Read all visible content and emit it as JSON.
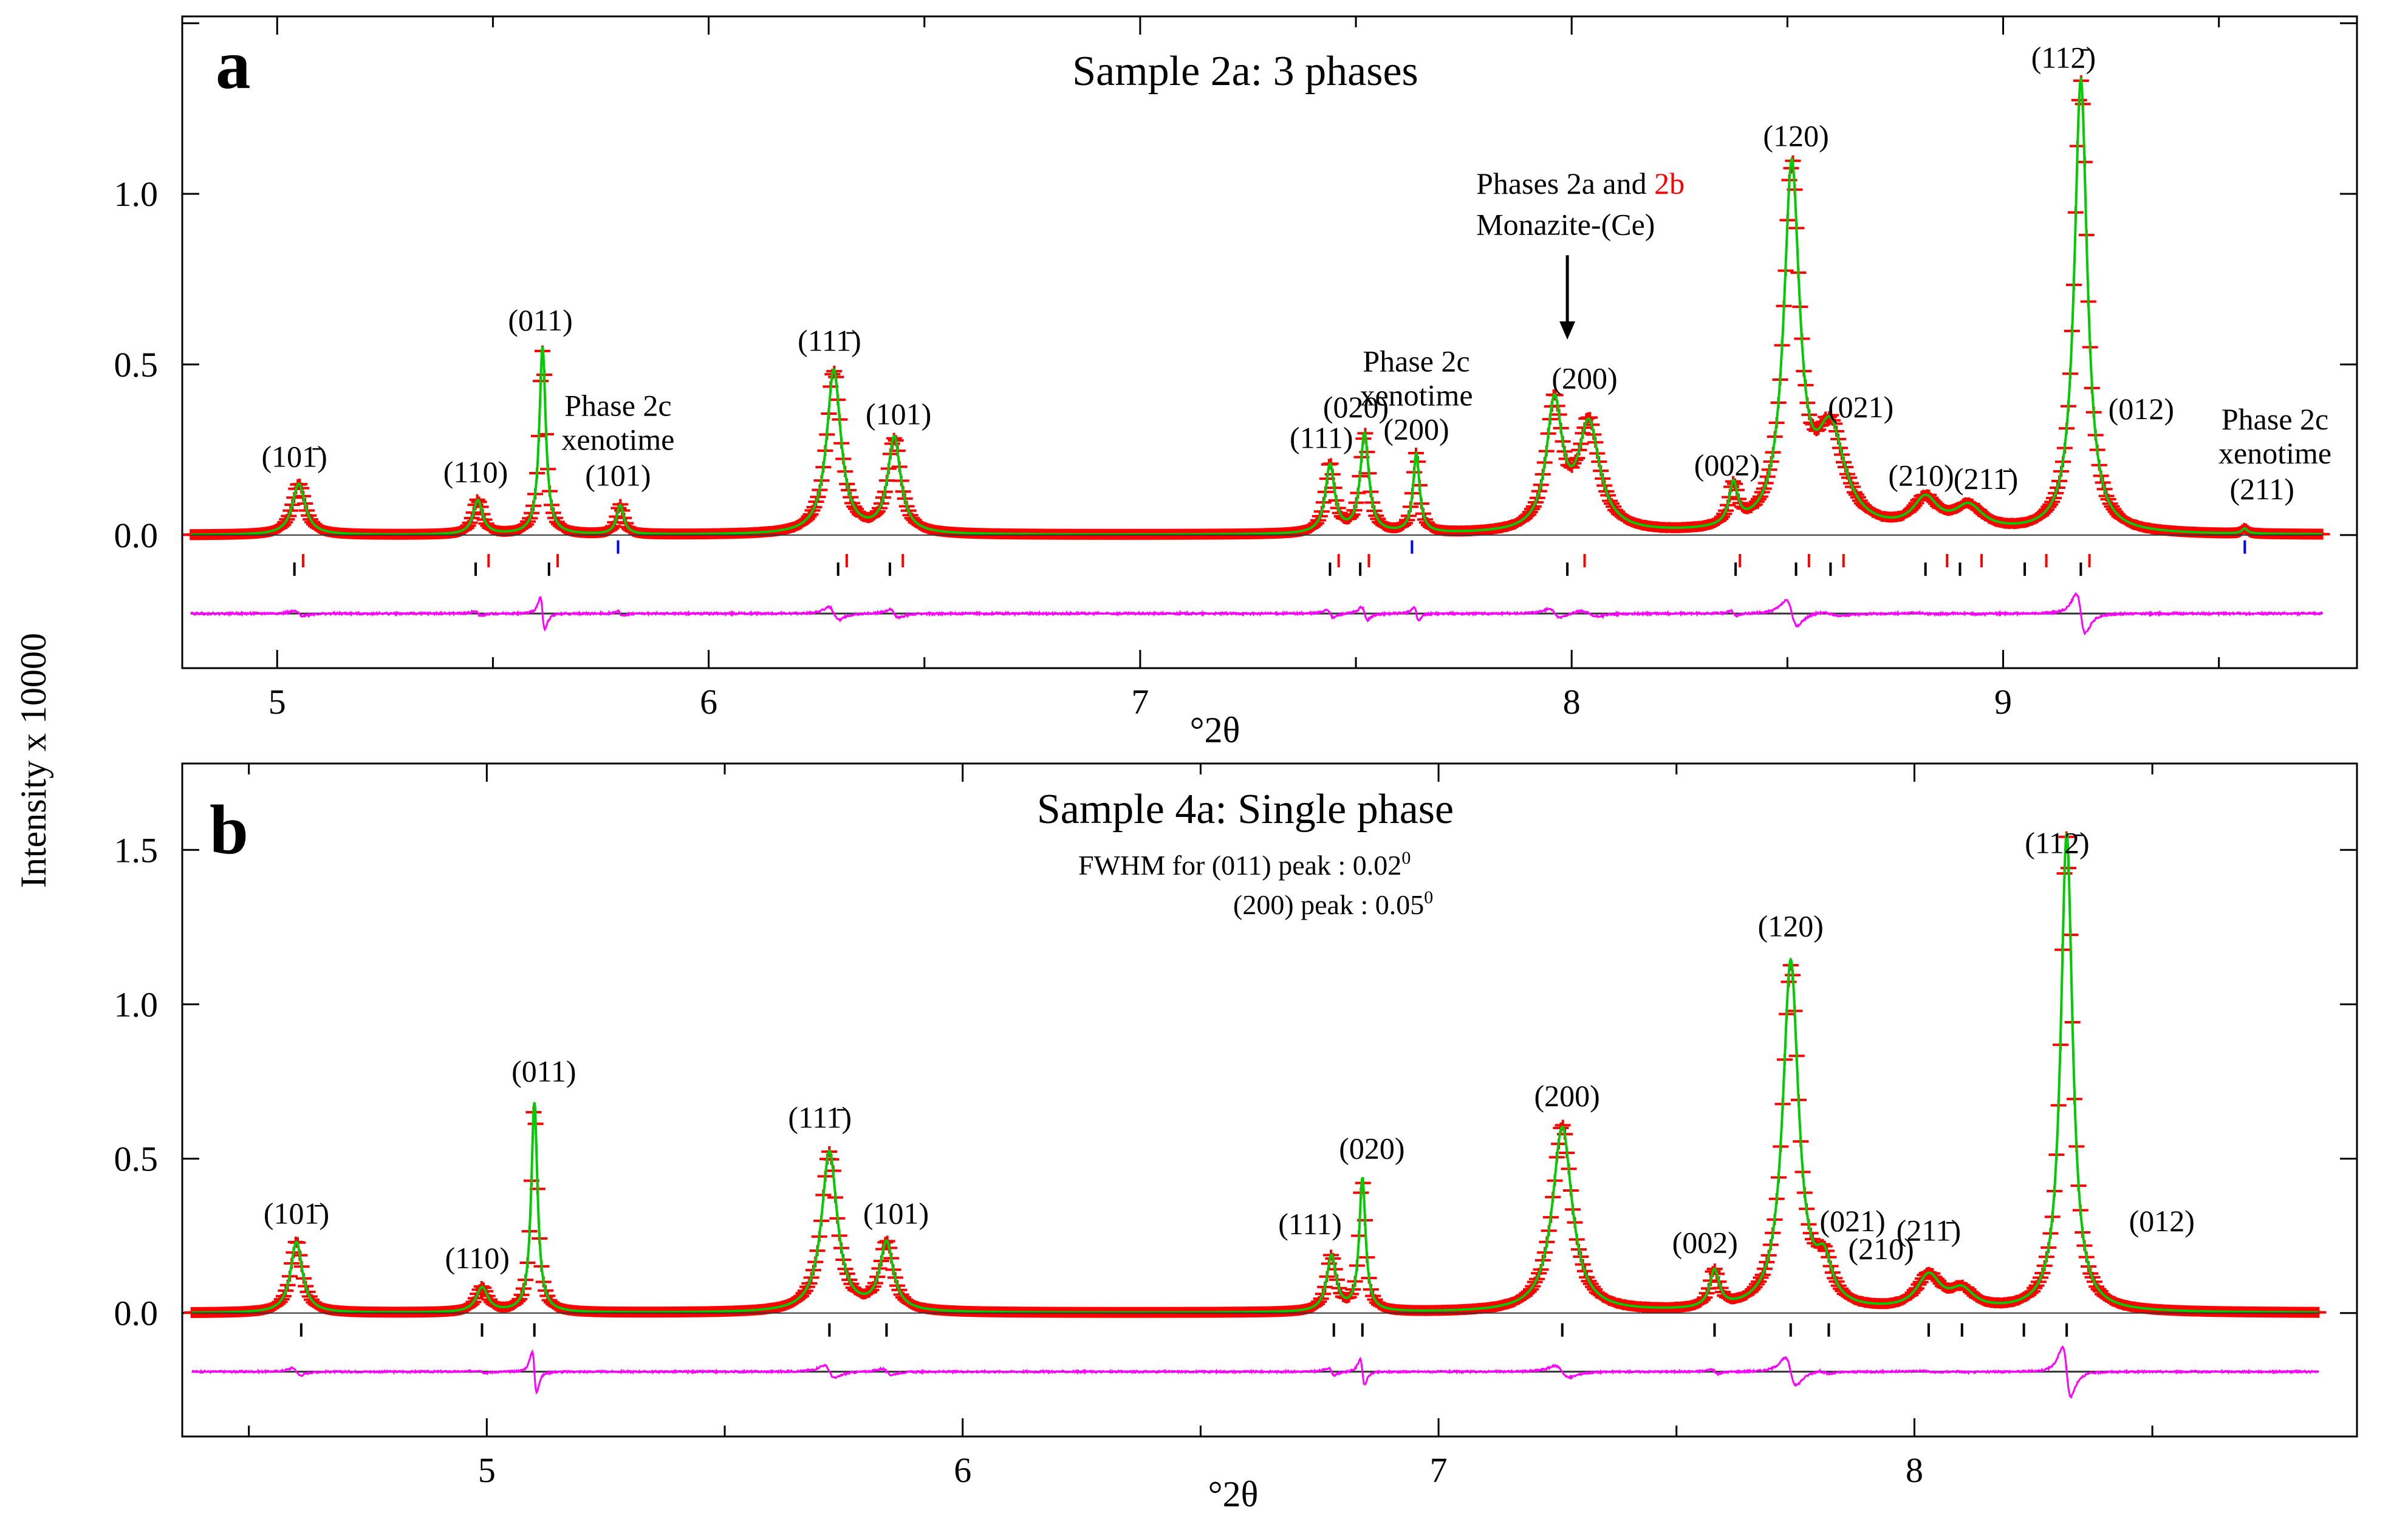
{
  "figure": {
    "ylabel": "Intensity x 10000",
    "colors": {
      "observed": "#ff0000",
      "calculated": "#00cc00",
      "difference": "#ff00ff",
      "phase_2a": "#000000",
      "phase_2b": "#ff0000",
      "phase_2c": "#0000ff"
    }
  },
  "chart_data": [
    {
      "type": "line",
      "panel": "a",
      "title": "Sample 2a: 3 phases",
      "xlabel": "°2θ",
      "ylabel": "Intensity x 10000",
      "xlim": [
        4.78,
        9.82
      ],
      "ylim": [
        -0.39,
        1.52
      ],
      "xticks": [
        "5",
        "6",
        "7",
        "8",
        "9"
      ],
      "yticks": [
        "0.0",
        "0.5",
        "1.0"
      ],
      "baseline": 0.0,
      "diff_offset": -0.23,
      "peaks": [
        {
          "x": 5.05,
          "height": 0.15,
          "width": 0.018
        },
        {
          "x": 5.465,
          "height": 0.1,
          "width": 0.013
        },
        {
          "x": 5.615,
          "height": 0.55,
          "width": 0.009
        },
        {
          "x": 5.795,
          "height": 0.085,
          "width": 0.01
        },
        {
          "x": 6.29,
          "height": 0.48,
          "width": 0.02
        },
        {
          "x": 6.43,
          "height": 0.28,
          "width": 0.018
        },
        {
          "x": 7.44,
          "height": 0.2,
          "width": 0.013
        },
        {
          "x": 7.52,
          "height": 0.29,
          "width": 0.012
        },
        {
          "x": 7.64,
          "height": 0.23,
          "width": 0.009
        },
        {
          "x": 7.96,
          "height": 0.37,
          "width": 0.022
        },
        {
          "x": 8.04,
          "height": 0.31,
          "width": 0.03
        },
        {
          "x": 8.375,
          "height": 0.12,
          "width": 0.012
        },
        {
          "x": 8.51,
          "height": 1.05,
          "width": 0.022
        },
        {
          "x": 8.6,
          "height": 0.28,
          "width": 0.04
        },
        {
          "x": 8.82,
          "height": 0.09,
          "width": 0.035
        },
        {
          "x": 8.92,
          "height": 0.07,
          "width": 0.04
        },
        {
          "x": 9.18,
          "height": 1.33,
          "width": 0.018
        },
        {
          "x": 9.56,
          "height": 0.015,
          "width": 0.008
        }
      ],
      "tick_rows": [
        {
          "phase": "Phases 2a",
          "y": -0.1,
          "color": "#000000",
          "x": [
            5.04,
            5.46,
            5.63,
            6.3,
            6.42,
            7.44,
            7.51,
            7.99,
            8.38,
            8.52,
            8.6,
            8.82,
            8.9,
            9.05,
            9.18
          ]
        },
        {
          "phase": "2b",
          "y": -0.075,
          "color": "#ff0000",
          "x": [
            5.06,
            5.49,
            5.65,
            6.32,
            6.45,
            7.46,
            7.53,
            8.03,
            8.39,
            8.55,
            8.63,
            8.87,
            8.95,
            9.1,
            9.2
          ]
        },
        {
          "phase": "Phase 2c xenotime",
          "y": -0.035,
          "color": "#0000ff",
          "x": [
            5.79,
            7.63,
            9.56
          ]
        }
      ],
      "annotations": [
        {
          "text": "(101̄)",
          "x": 5.04,
          "y": 0.2
        },
        {
          "text": "(110)",
          "x": 5.46,
          "y": 0.155
        },
        {
          "text": "(011)",
          "x": 5.61,
          "y": 0.6
        },
        {
          "text": "(111̄)",
          "x": 6.28,
          "y": 0.54
        },
        {
          "text": "(101)",
          "x": 6.44,
          "y": 0.325
        },
        {
          "text": "(111)",
          "x": 7.42,
          "y": 0.255
        },
        {
          "text": "(020)",
          "x": 7.5,
          "y": 0.345
        },
        {
          "text": "(200)",
          "x": 8.03,
          "y": 0.43
        },
        {
          "text": "(002)",
          "x": 8.36,
          "y": 0.175
        },
        {
          "text": "(120)",
          "x": 8.52,
          "y": 1.14
        },
        {
          "text": "(021)",
          "x": 8.67,
          "y": 0.345
        },
        {
          "text": "(210)",
          "x": 8.81,
          "y": 0.145
        },
        {
          "text": "(211̄)",
          "x": 8.96,
          "y": 0.135
        },
        {
          "text": "(112̄)",
          "x": 9.14,
          "y": 1.37
        },
        {
          "text": "(012)",
          "x": 9.32,
          "y": 0.34
        },
        {
          "text": "Phase 2c",
          "x": 5.79,
          "y": 0.35,
          "color": "#0000ff"
        },
        {
          "text": "xenotime",
          "x": 5.79,
          "y": 0.25,
          "color": "#0000ff"
        },
        {
          "text": "(101)",
          "x": 5.79,
          "y": 0.145,
          "color": "#0000ff"
        },
        {
          "text": "Phase 2c",
          "x": 7.64,
          "y": 0.48,
          "color": "#0000ff"
        },
        {
          "text": "xenotime",
          "x": 7.64,
          "y": 0.38,
          "color": "#0000ff"
        },
        {
          "text": "(200)",
          "x": 7.64,
          "y": 0.28,
          "color": "#0000ff"
        },
        {
          "text": "Phase 2c",
          "x": 9.63,
          "y": 0.31,
          "color": "#0000ff"
        },
        {
          "text": "xenotime",
          "x": 9.63,
          "y": 0.21,
          "color": "#0000ff"
        },
        {
          "text": "(211)",
          "x": 9.6,
          "y": 0.105,
          "color": "#0000ff"
        }
      ],
      "callout": {
        "line1": "Phases 2a and ",
        "line1_colored": "2b",
        "line2": "Monazite-(Ce)",
        "arrow_from": [
          7.99,
          0.82
        ],
        "arrow_to": [
          7.99,
          0.58
        ]
      }
    },
    {
      "type": "line",
      "panel": "b",
      "title": "Sample 4a: Single phase",
      "xlabel": "°2θ",
      "ylabel": "Intensity x 10000",
      "xlim": [
        4.36,
        8.93
      ],
      "ylim": [
        -0.4,
        1.78
      ],
      "xticks": [
        "5",
        "6",
        "7",
        "8"
      ],
      "yticks": [
        "0.0",
        "0.5",
        "1.0",
        "1.5"
      ],
      "baseline": 0.0,
      "diff_offset": -0.19,
      "peaks": [
        {
          "x": 4.6,
          "height": 0.23,
          "width": 0.015
        },
        {
          "x": 4.99,
          "height": 0.08,
          "width": 0.015
        },
        {
          "x": 5.1,
          "height": 0.68,
          "width": 0.008
        },
        {
          "x": 5.72,
          "height": 0.52,
          "width": 0.02
        },
        {
          "x": 5.84,
          "height": 0.22,
          "width": 0.017
        },
        {
          "x": 6.775,
          "height": 0.18,
          "width": 0.012
        },
        {
          "x": 6.84,
          "height": 0.43,
          "width": 0.008
        },
        {
          "x": 7.26,
          "height": 0.6,
          "width": 0.025
        },
        {
          "x": 7.58,
          "height": 0.12,
          "width": 0.012
        },
        {
          "x": 7.74,
          "height": 1.13,
          "width": 0.02
        },
        {
          "x": 7.81,
          "height": 0.13,
          "width": 0.02
        },
        {
          "x": 8.03,
          "height": 0.11,
          "width": 0.03
        },
        {
          "x": 8.1,
          "height": 0.06,
          "width": 0.03
        },
        {
          "x": 8.32,
          "height": 1.55,
          "width": 0.015
        }
      ],
      "tick_rows": [
        {
          "phase": "Sample 4a",
          "y": -0.055,
          "color": "#000000",
          "x": [
            4.61,
            4.99,
            5.1,
            5.72,
            5.84,
            6.78,
            6.84,
            7.26,
            7.58,
            7.74,
            7.82,
            8.03,
            8.1,
            8.23,
            8.32
          ]
        }
      ],
      "annotations": [
        {
          "text": "(101̄)",
          "x": 4.6,
          "y": 0.29
        },
        {
          "text": "(110)",
          "x": 4.98,
          "y": 0.145
        },
        {
          "text": "(011)",
          "x": 5.12,
          "y": 0.75
        },
        {
          "text": "(111̄)",
          "x": 5.7,
          "y": 0.6
        },
        {
          "text": "(101)",
          "x": 5.86,
          "y": 0.29
        },
        {
          "text": "(111)",
          "x": 6.73,
          "y": 0.255
        },
        {
          "text": "(020)",
          "x": 6.86,
          "y": 0.5
        },
        {
          "text": "(200)",
          "x": 7.27,
          "y": 0.67
        },
        {
          "text": "(002)",
          "x": 7.56,
          "y": 0.195
        },
        {
          "text": "(120)",
          "x": 7.74,
          "y": 1.22
        },
        {
          "text": "(021)",
          "x": 7.87,
          "y": 0.265
        },
        {
          "text": "(210)",
          "x": 7.93,
          "y": 0.175
        },
        {
          "text": "(211̄)",
          "x": 8.03,
          "y": 0.235
        },
        {
          "text": "(112̄)",
          "x": 8.3,
          "y": 1.49
        },
        {
          "text": "(012)",
          "x": 8.52,
          "y": 0.265
        }
      ],
      "note": {
        "line1": "FWHM for (011) peak : 0.02",
        "line1_sup": "0",
        "line2": "(200) peak : 0.05",
        "line2_sup": "0"
      }
    }
  ]
}
